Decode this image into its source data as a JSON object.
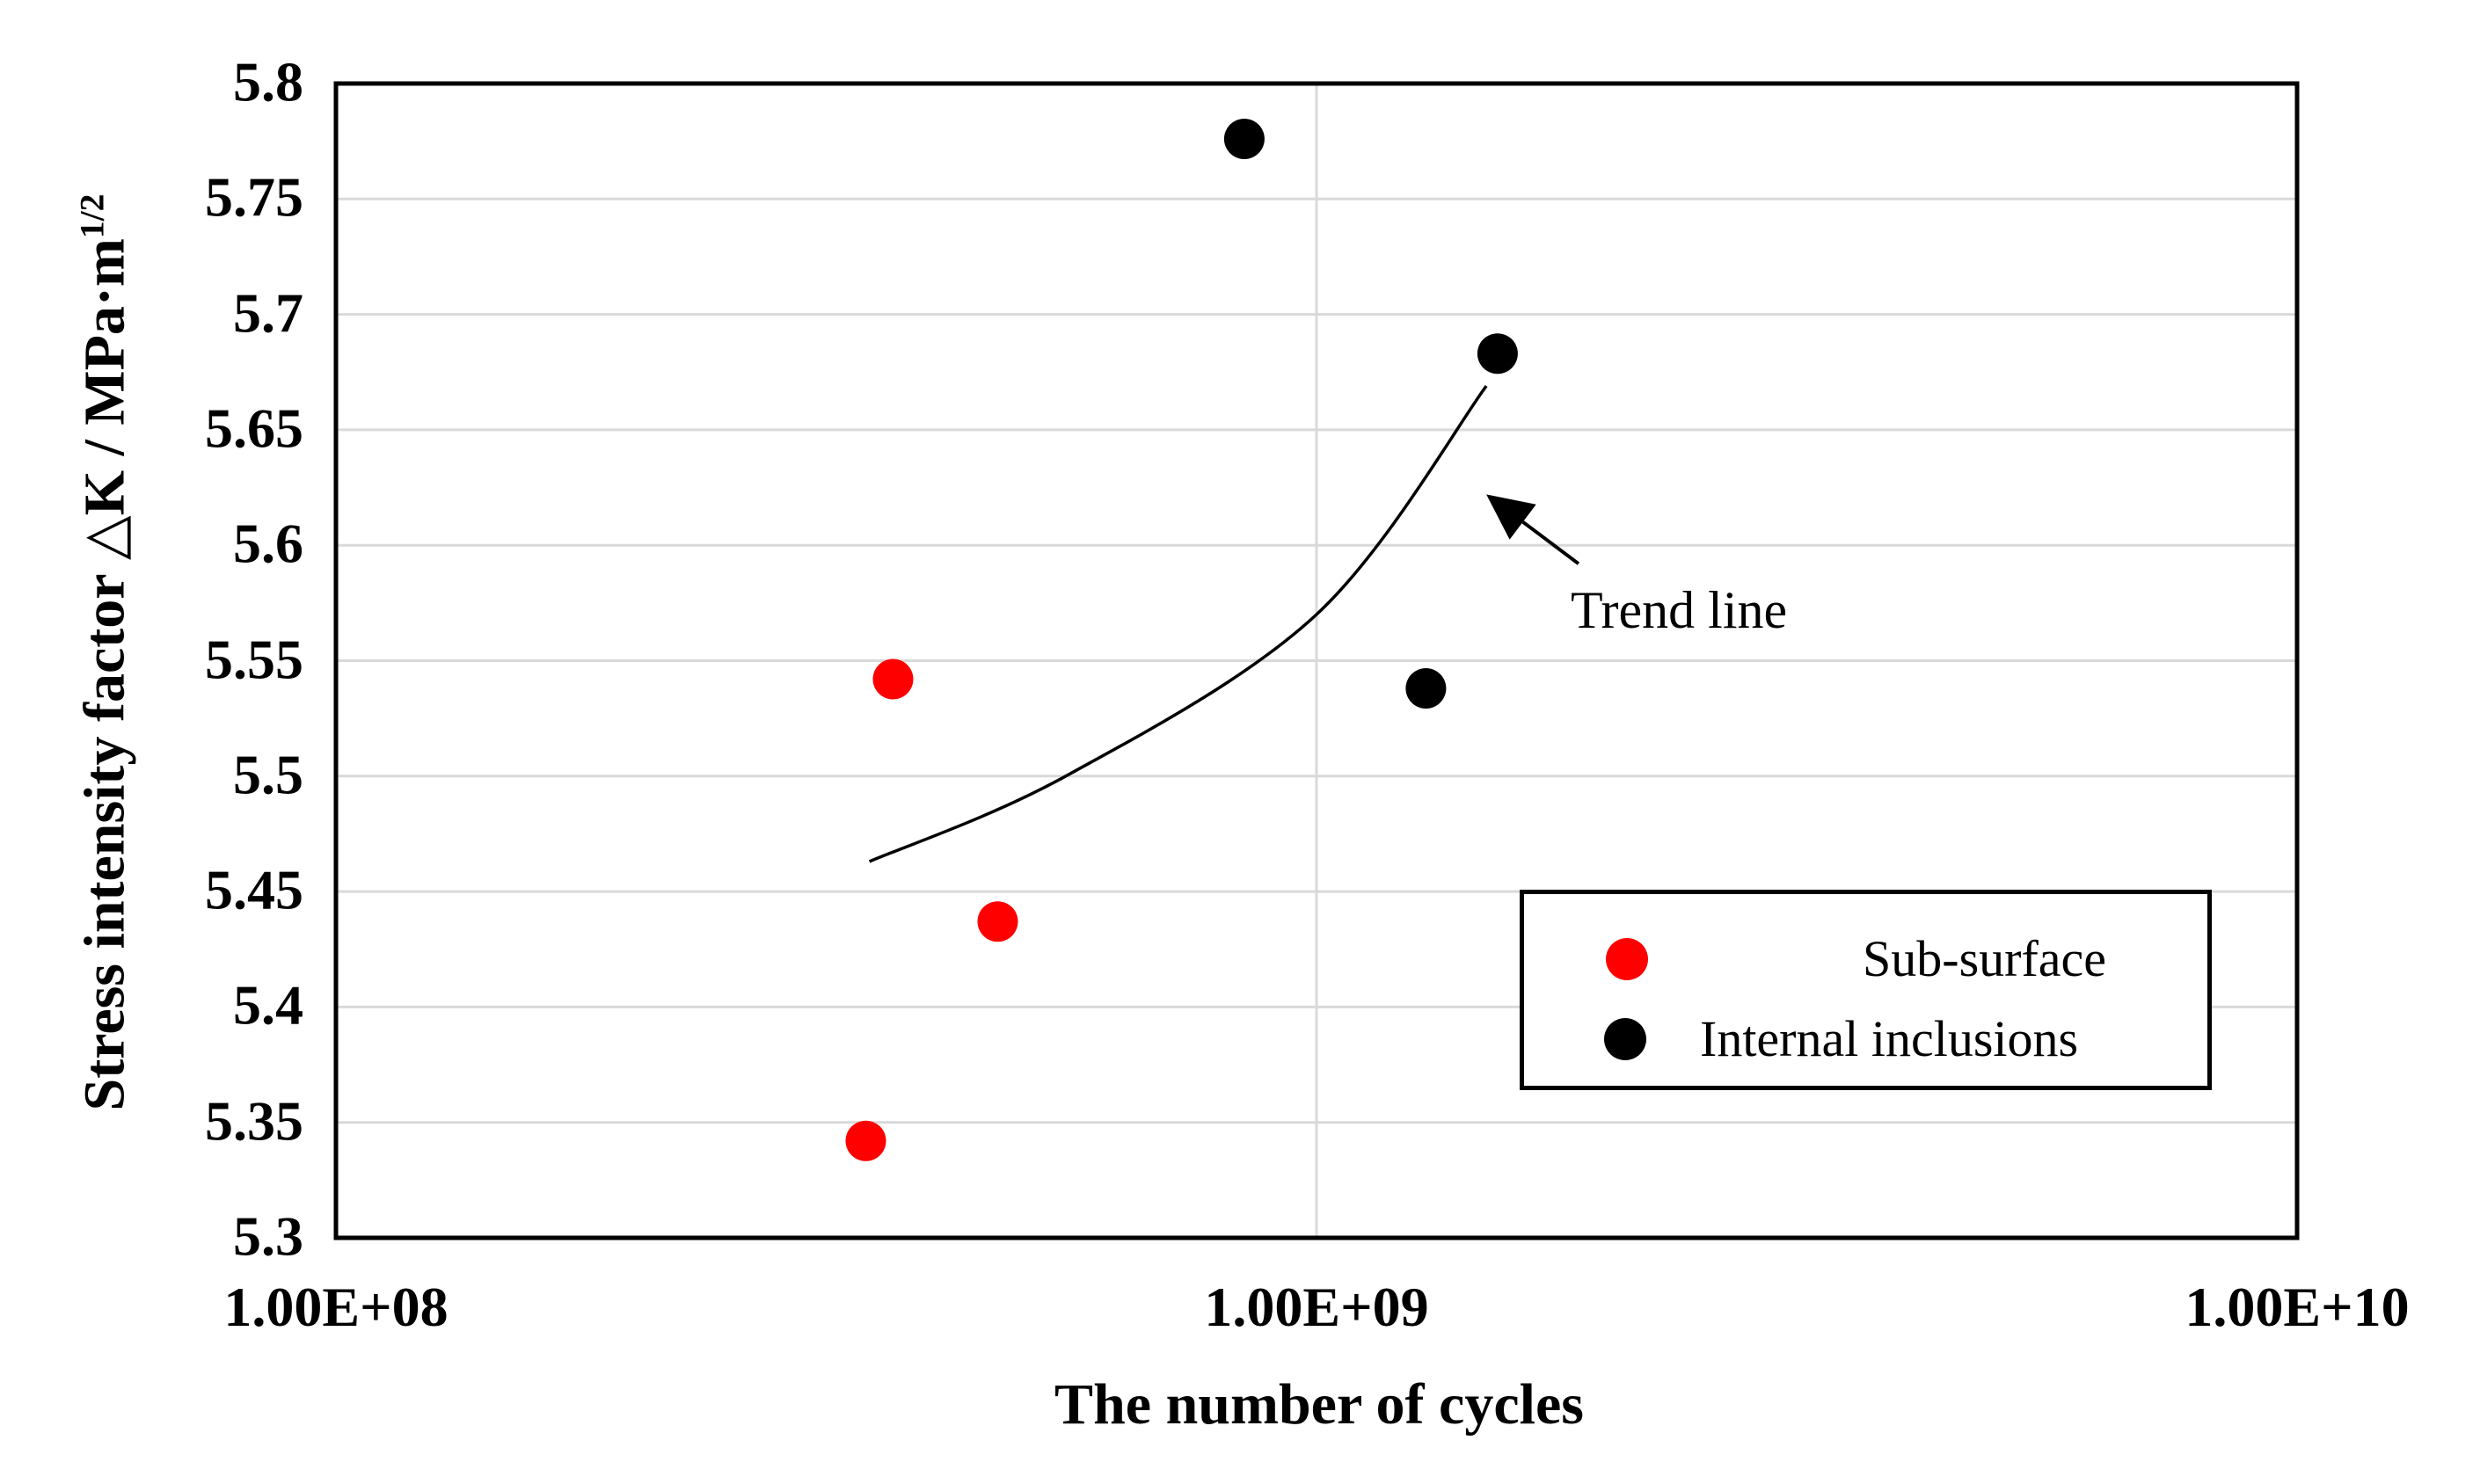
{
  "figure": {
    "background": "#ffffff",
    "text_color": "#000000"
  },
  "chart_data": {
    "type": "scatter",
    "title": "",
    "xlabel": "The number of cycles",
    "ylabel": "Stress intensity factor △K / MPa·m",
    "ylabel_superscript": "1/2",
    "x_axis": {
      "scale": "log",
      "lim": [
        100000000,
        10000000000
      ],
      "ticks": [
        {
          "value": 100000000,
          "label": "1.00E+08"
        },
        {
          "value": 1000000000,
          "label": "1.00E+09"
        },
        {
          "value": 10000000000,
          "label": "1.00E+10"
        }
      ]
    },
    "y_axis": {
      "lim": [
        5.3,
        5.8
      ],
      "tick_step": 0.05,
      "ticks": [
        {
          "value": 5.8,
          "label": "5.8"
        },
        {
          "value": 5.75,
          "label": "5.75"
        },
        {
          "value": 5.7,
          "label": "5.7"
        },
        {
          "value": 5.65,
          "label": "5.65"
        },
        {
          "value": 5.6,
          "label": "5.6"
        },
        {
          "value": 5.55,
          "label": "5.55"
        },
        {
          "value": 5.5,
          "label": "5.5"
        },
        {
          "value": 5.45,
          "label": "5.45"
        },
        {
          "value": 5.4,
          "label": "5.4"
        },
        {
          "value": 5.35,
          "label": "5.35"
        },
        {
          "value": 5.3,
          "label": "5.3"
        }
      ]
    },
    "grid": {
      "show": true,
      "color": "#d9d9d9",
      "border_color": "#000000"
    },
    "series": [
      {
        "name": "Sub-surface",
        "color": "#ff0000",
        "marker": "circle",
        "points": [
          [
            370000000,
            5.542
          ],
          [
            473000000,
            5.437
          ],
          [
            347000000,
            5.342
          ]
        ]
      },
      {
        "name": "Internal inclusions",
        "color": "#000000",
        "marker": "circle",
        "points": [
          [
            844000000,
            5.776
          ],
          [
            1530000000,
            5.683
          ],
          [
            1293000000,
            5.538
          ]
        ]
      }
    ],
    "trend_line": {
      "color": "#000000",
      "points": [
        [
          350000000,
          5.463
        ],
        [
          555000000,
          5.5
        ],
        [
          1000000000,
          5.57
        ],
        [
          1490000000,
          5.669
        ]
      ]
    },
    "annotation": {
      "text": "Trend line",
      "arrow_from": [
        1850000000,
        5.592
      ],
      "arrow_to": [
        1490000000,
        5.622
      ]
    },
    "legend": {
      "position": "inside-right-bottom",
      "entries": [
        {
          "label": "Sub-surface",
          "color": "#ff0000"
        },
        {
          "label": "Internal inclusions",
          "color": "#000000"
        }
      ]
    }
  }
}
